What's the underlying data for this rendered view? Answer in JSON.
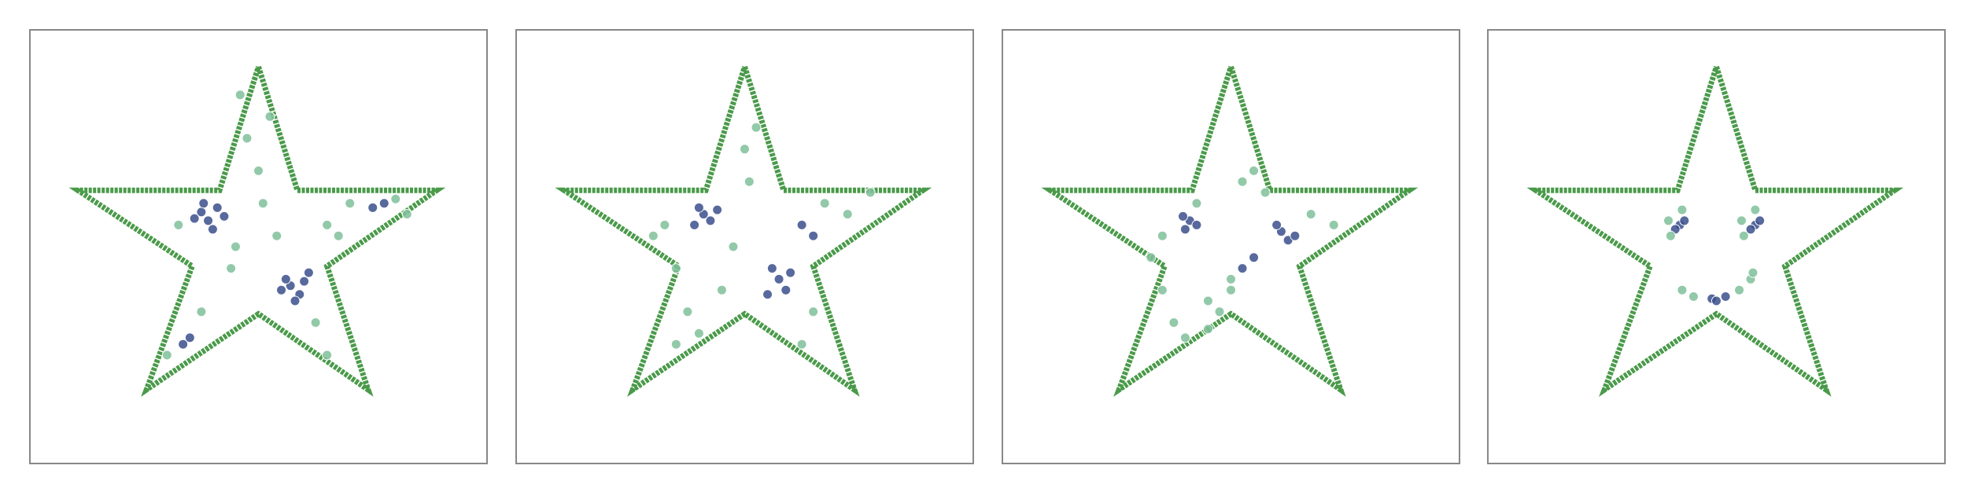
{
  "chart_data": [
    {
      "type": "scatter",
      "xlim": [
        -1,
        1
      ],
      "ylim": [
        -1,
        1
      ],
      "outline": {
        "color": "#4a9a4a",
        "x": [
          0,
          0.17,
          0.78,
          0.3,
          0.48,
          0,
          -0.49,
          -0.29,
          -0.79,
          -0.17,
          0
        ],
        "y": [
          0.83,
          0.26,
          0.26,
          -0.09,
          -0.66,
          -0.31,
          -0.66,
          -0.09,
          0.26,
          0.26,
          0.83
        ]
      },
      "series": [
        {
          "color": "#3b4f8c",
          "x": [
            -0.25,
            -0.22,
            -0.18,
            -0.28,
            -0.2,
            -0.15,
            -0.24,
            0.14,
            0.18,
            0.12,
            0.2,
            0.16,
            0.1,
            0.22,
            -0.3,
            -0.33,
            0.5,
            0.55
          ],
          "y": [
            0.16,
            0.12,
            0.18,
            0.13,
            0.08,
            0.14,
            0.2,
            -0.18,
            -0.22,
            -0.15,
            -0.16,
            -0.25,
            -0.2,
            -0.12,
            -0.42,
            -0.45,
            0.18,
            0.2
          ]
        },
        {
          "color": "#7fbf9a",
          "x": [
            -0.05,
            0.0,
            0.05,
            -0.35,
            -0.1,
            0.3,
            0.4,
            0.6,
            0.65,
            0.25,
            0.3,
            -0.4,
            -0.25,
            0.02,
            0.08,
            -0.12,
            0.35,
            -0.08
          ],
          "y": [
            0.5,
            0.35,
            0.6,
            0.1,
            0.0,
            0.1,
            0.2,
            0.22,
            0.15,
            -0.35,
            -0.5,
            -0.5,
            -0.3,
            0.2,
            0.05,
            -0.1,
            0.05,
            0.7
          ]
        }
      ]
    },
    {
      "type": "scatter",
      "xlim": [
        -1,
        1
      ],
      "ylim": [
        -1,
        1
      ],
      "outline": {
        "color": "#4a9a4a",
        "x": [
          0,
          0.17,
          0.78,
          0.3,
          0.48,
          0,
          -0.49,
          -0.29,
          -0.79,
          -0.17,
          0
        ],
        "y": [
          0.83,
          0.26,
          0.26,
          -0.09,
          -0.66,
          -0.31,
          -0.66,
          -0.09,
          0.26,
          0.26,
          0.83
        ]
      },
      "series": [
        {
          "color": "#3b4f8c",
          "x": [
            -0.18,
            -0.15,
            -0.2,
            -0.12,
            -0.22,
            0.15,
            0.18,
            0.12,
            0.2,
            0.1,
            0.25,
            0.3
          ],
          "y": [
            0.15,
            0.12,
            0.18,
            0.17,
            0.1,
            -0.15,
            -0.2,
            -0.1,
            -0.12,
            -0.22,
            0.1,
            0.05
          ]
        },
        {
          "color": "#7fbf9a",
          "x": [
            -0.35,
            -0.4,
            -0.3,
            -0.25,
            0.0,
            0.05,
            0.02,
            0.35,
            0.45,
            0.55,
            -0.3,
            -0.2,
            -0.1,
            0.3,
            0.25,
            -0.05
          ],
          "y": [
            0.1,
            0.05,
            -0.1,
            -0.3,
            0.45,
            0.55,
            0.3,
            0.2,
            0.15,
            0.25,
            -0.45,
            -0.4,
            -0.2,
            -0.3,
            -0.45,
            0.0
          ]
        }
      ]
    },
    {
      "type": "scatter",
      "xlim": [
        -1,
        1
      ],
      "ylim": [
        -1,
        1
      ],
      "outline": {
        "color": "#4a9a4a",
        "x": [
          0,
          0.17,
          0.78,
          0.3,
          0.48,
          0,
          -0.49,
          -0.29,
          -0.79,
          -0.17,
          0
        ],
        "y": [
          0.83,
          0.26,
          0.26,
          -0.09,
          -0.66,
          -0.31,
          -0.66,
          -0.09,
          0.26,
          0.26,
          0.83
        ]
      },
      "series": [
        {
          "color": "#3b4f8c",
          "x": [
            -0.18,
            -0.15,
            -0.21,
            -0.2,
            0.22,
            0.25,
            0.2,
            0.28,
            0.05,
            0.1
          ],
          "y": [
            0.12,
            0.1,
            0.14,
            0.08,
            0.07,
            0.03,
            0.1,
            0.05,
            -0.1,
            -0.05
          ]
        },
        {
          "color": "#7fbf9a",
          "x": [
            -0.3,
            -0.35,
            -0.1,
            -0.05,
            0.0,
            0.05,
            0.1,
            0.35,
            0.45,
            -0.25,
            -0.2,
            -0.1,
            0.0,
            -0.3,
            0.15,
            -0.15
          ],
          "y": [
            0.05,
            -0.05,
            -0.25,
            -0.3,
            -0.2,
            0.3,
            0.35,
            0.15,
            0.1,
            -0.35,
            -0.42,
            -0.38,
            -0.15,
            -0.2,
            0.25,
            0.2
          ]
        }
      ]
    },
    {
      "type": "scatter",
      "xlim": [
        -1,
        1
      ],
      "ylim": [
        -1,
        1
      ],
      "outline": {
        "color": "#4a9a4a",
        "x": [
          0,
          0.17,
          0.78,
          0.3,
          0.48,
          0,
          -0.49,
          -0.29,
          -0.79,
          -0.17,
          0
        ],
        "y": [
          0.83,
          0.26,
          0.26,
          -0.09,
          -0.66,
          -0.31,
          -0.66,
          -0.09,
          0.26,
          0.26,
          0.83
        ]
      },
      "series": [
        {
          "color": "#3b4f8c",
          "x": [
            -0.16,
            -0.14,
            -0.18,
            0.17,
            0.19,
            0.15,
            -0.02,
            0.0,
            0.04
          ],
          "y": [
            0.1,
            0.12,
            0.08,
            0.1,
            0.12,
            0.08,
            -0.24,
            -0.25,
            -0.23
          ]
        },
        {
          "color": "#7fbf9a",
          "x": [
            -0.21,
            -0.2,
            -0.15,
            0.11,
            0.12,
            0.17,
            -0.15,
            -0.1,
            0.1,
            0.15,
            0.16
          ],
          "y": [
            0.12,
            0.05,
            0.17,
            0.12,
            0.05,
            0.17,
            -0.2,
            -0.23,
            -0.2,
            -0.15,
            -0.12
          ]
        }
      ]
    }
  ]
}
